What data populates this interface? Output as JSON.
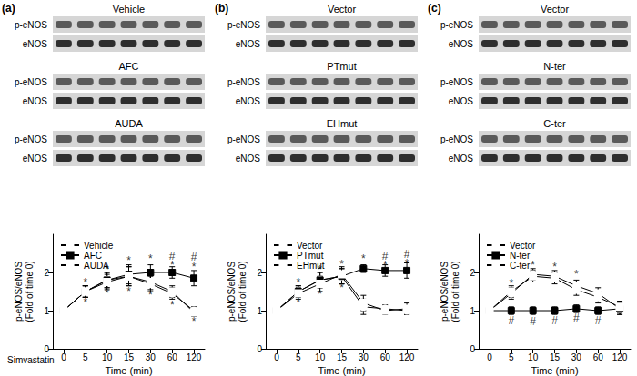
{
  "chart_data": [
    {
      "type": "line",
      "title": "(a)",
      "blots": [
        {
          "label": "Vehicle",
          "rows": [
            "p-eNOS",
            "eNOS"
          ]
        },
        {
          "label": "AFC",
          "rows": [
            "p-eNOS",
            "eNOS"
          ]
        },
        {
          "label": "AUDA",
          "rows": [
            "p-eNOS",
            "eNOS"
          ]
        }
      ],
      "annotation": "Simvastatin",
      "xlabel": "Time (min)",
      "ylabel": "p-eNOS/eNOS\n(Fold of time 0)",
      "categories": [
        "0",
        "5",
        "10",
        "15",
        "30",
        "60",
        "120"
      ],
      "ylim": [
        0,
        3
      ],
      "yticks": [
        0,
        1,
        2
      ],
      "grid": false,
      "legend": "upper left",
      "series": [
        {
          "name": "Vehicle",
          "color": "#000000",
          "marker": "open_circle",
          "values": [
            1,
            1.5,
            1.8,
            1.9,
            1.7,
            1.45,
            1.0
          ],
          "errors": [
            0,
            0.15,
            0.2,
            0.25,
            0.2,
            0.15,
            0.1
          ]
        },
        {
          "name": "AFC",
          "color": "#000000",
          "marker": "filled_square",
          "values": [
            1,
            1.5,
            1.8,
            1.95,
            2.0,
            2.0,
            1.85
          ],
          "errors": [
            0,
            0.15,
            0.2,
            0.25,
            0.2,
            0.15,
            0.2
          ]
        },
        {
          "name": "AUDA",
          "color": "#000000",
          "marker": "open_square",
          "values": [
            1,
            1.5,
            1.75,
            1.9,
            1.75,
            1.5,
            0.95
          ],
          "errors": [
            0,
            0.15,
            0.2,
            0.25,
            0.2,
            0.15,
            0.1
          ]
        }
      ],
      "significance": [
        {
          "x": "5",
          "y": 1.75,
          "text": "*"
        },
        {
          "x": "5",
          "y": 1.22,
          "text": "*"
        },
        {
          "x": "10",
          "y": 2.08,
          "text": "*"
        },
        {
          "x": "10",
          "y": 1.45,
          "text": "*"
        },
        {
          "x": "15",
          "y": 2.3,
          "text": "*"
        },
        {
          "x": "15",
          "y": 1.5,
          "text": "*"
        },
        {
          "x": "30",
          "y": 2.35,
          "text": "*"
        },
        {
          "x": "30",
          "y": 1.4,
          "text": "*"
        },
        {
          "x": "60",
          "y": 2.42,
          "text": "#"
        },
        {
          "x": "60",
          "y": 2.18,
          "text": "*"
        },
        {
          "x": "60",
          "y": 1.15,
          "text": "*"
        },
        {
          "x": "120",
          "y": 2.4,
          "text": "#"
        },
        {
          "x": "120",
          "y": 2.15,
          "text": "*"
        },
        {
          "x": "120",
          "y": 0.72,
          "text": "*"
        }
      ]
    },
    {
      "type": "line",
      "title": "(b)",
      "blots": [
        {
          "label": "Vector",
          "rows": [
            "p-eNOS",
            "eNOS"
          ]
        },
        {
          "label": "PTmut",
          "rows": [
            "p-eNOS",
            "eNOS"
          ]
        },
        {
          "label": "EHmut",
          "rows": [
            "p-eNOS",
            "eNOS"
          ]
        }
      ],
      "xlabel": "Time (min)",
      "ylabel": "p-eNOS/eNOS\n(Fold of time 0)",
      "categories": [
        "0",
        "5",
        "10",
        "15",
        "30",
        "60",
        "120"
      ],
      "ylim": [
        0,
        3
      ],
      "yticks": [
        0,
        1,
        2
      ],
      "grid": false,
      "legend": "upper left",
      "series": [
        {
          "name": "Vector",
          "color": "#000000",
          "marker": "open_circle",
          "values": [
            1,
            1.5,
            1.8,
            1.9,
            1.1,
            1.05,
            1.0
          ],
          "errors": [
            0,
            0.15,
            0.2,
            0.2,
            0.2,
            0.1,
            0.1
          ]
        },
        {
          "name": "PTmut",
          "color": "#000000",
          "marker": "filled_square",
          "values": [
            1,
            1.5,
            1.8,
            1.9,
            2.1,
            2.05,
            2.05
          ],
          "errors": [
            0,
            0.15,
            0.2,
            0.2,
            0.1,
            0.15,
            0.2
          ]
        },
        {
          "name": "EHmut",
          "color": "#000000",
          "marker": "open_square",
          "values": [
            1,
            1.45,
            1.7,
            1.95,
            1.2,
            1.0,
            1.05
          ],
          "errors": [
            0,
            0.15,
            0.2,
            0.2,
            0.2,
            0.1,
            0.15
          ]
        }
      ],
      "significance": [
        {
          "x": "5",
          "y": 1.75,
          "text": "*"
        },
        {
          "x": "5",
          "y": 1.22,
          "text": "*"
        },
        {
          "x": "10",
          "y": 2.08,
          "text": "*"
        },
        {
          "x": "10",
          "y": 1.42,
          "text": "*"
        },
        {
          "x": "15",
          "y": 2.22,
          "text": "*"
        },
        {
          "x": "15",
          "y": 1.6,
          "text": "*"
        },
        {
          "x": "30",
          "y": 2.35,
          "text": "*"
        },
        {
          "x": "60",
          "y": 2.42,
          "text": "#"
        },
        {
          "x": "60",
          "y": 2.2,
          "text": "*"
        },
        {
          "x": "120",
          "y": 2.48,
          "text": "#"
        },
        {
          "x": "120",
          "y": 2.25,
          "text": "*"
        }
      ]
    },
    {
      "type": "line",
      "title": "(c)",
      "blots": [
        {
          "label": "Vector",
          "rows": [
            "p-eNOS",
            "eNOS"
          ]
        },
        {
          "label": "N-ter",
          "rows": [
            "p-eNOS",
            "eNOS"
          ]
        },
        {
          "label": "C-ter",
          "rows": [
            "p-eNOS",
            "eNOS"
          ]
        }
      ],
      "xlabel": "Time (min)",
      "ylabel": "p-eNOS/eNOS\n(Fold of time 0)",
      "categories": [
        "0",
        "5",
        "10",
        "15",
        "30",
        "60",
        "120"
      ],
      "ylim": [
        0,
        3
      ],
      "yticks": [
        0,
        1,
        2
      ],
      "grid": false,
      "legend": "upper left",
      "series": [
        {
          "name": "Vector",
          "color": "#000000",
          "marker": "open_circle",
          "values": [
            1,
            1.45,
            1.95,
            1.9,
            1.65,
            1.45,
            1.05
          ],
          "errors": [
            0,
            0.15,
            0.15,
            0.15,
            0.15,
            0.15,
            0.15
          ]
        },
        {
          "name": "N-ter",
          "color": "#000000",
          "marker": "filled_square",
          "values": [
            1,
            1.0,
            1.0,
            1.0,
            1.05,
            1.0,
            1.05
          ],
          "errors": [
            0,
            0.1,
            0.1,
            0.1,
            0.1,
            0.1,
            0.15
          ]
        },
        {
          "name": "C-ter",
          "color": "#000000",
          "marker": "open_square",
          "values": [
            1,
            1.5,
            1.9,
            1.85,
            1.55,
            1.35,
            1.1
          ],
          "errors": [
            0,
            0.15,
            0.15,
            0.15,
            0.15,
            0.15,
            0.15
          ]
        }
      ],
      "significance": [
        {
          "x": "5",
          "y": 1.72,
          "text": "*"
        },
        {
          "x": "5",
          "y": 0.75,
          "text": "#"
        },
        {
          "x": "10",
          "y": 2.2,
          "text": "*"
        },
        {
          "x": "10",
          "y": 0.72,
          "text": "#"
        },
        {
          "x": "15",
          "y": 2.15,
          "text": "*"
        },
        {
          "x": "15",
          "y": 0.75,
          "text": "#"
        },
        {
          "x": "30",
          "y": 1.95,
          "text": "*"
        },
        {
          "x": "30",
          "y": 0.8,
          "text": "#"
        },
        {
          "x": "60",
          "y": 0.75,
          "text": "#"
        }
      ]
    }
  ]
}
